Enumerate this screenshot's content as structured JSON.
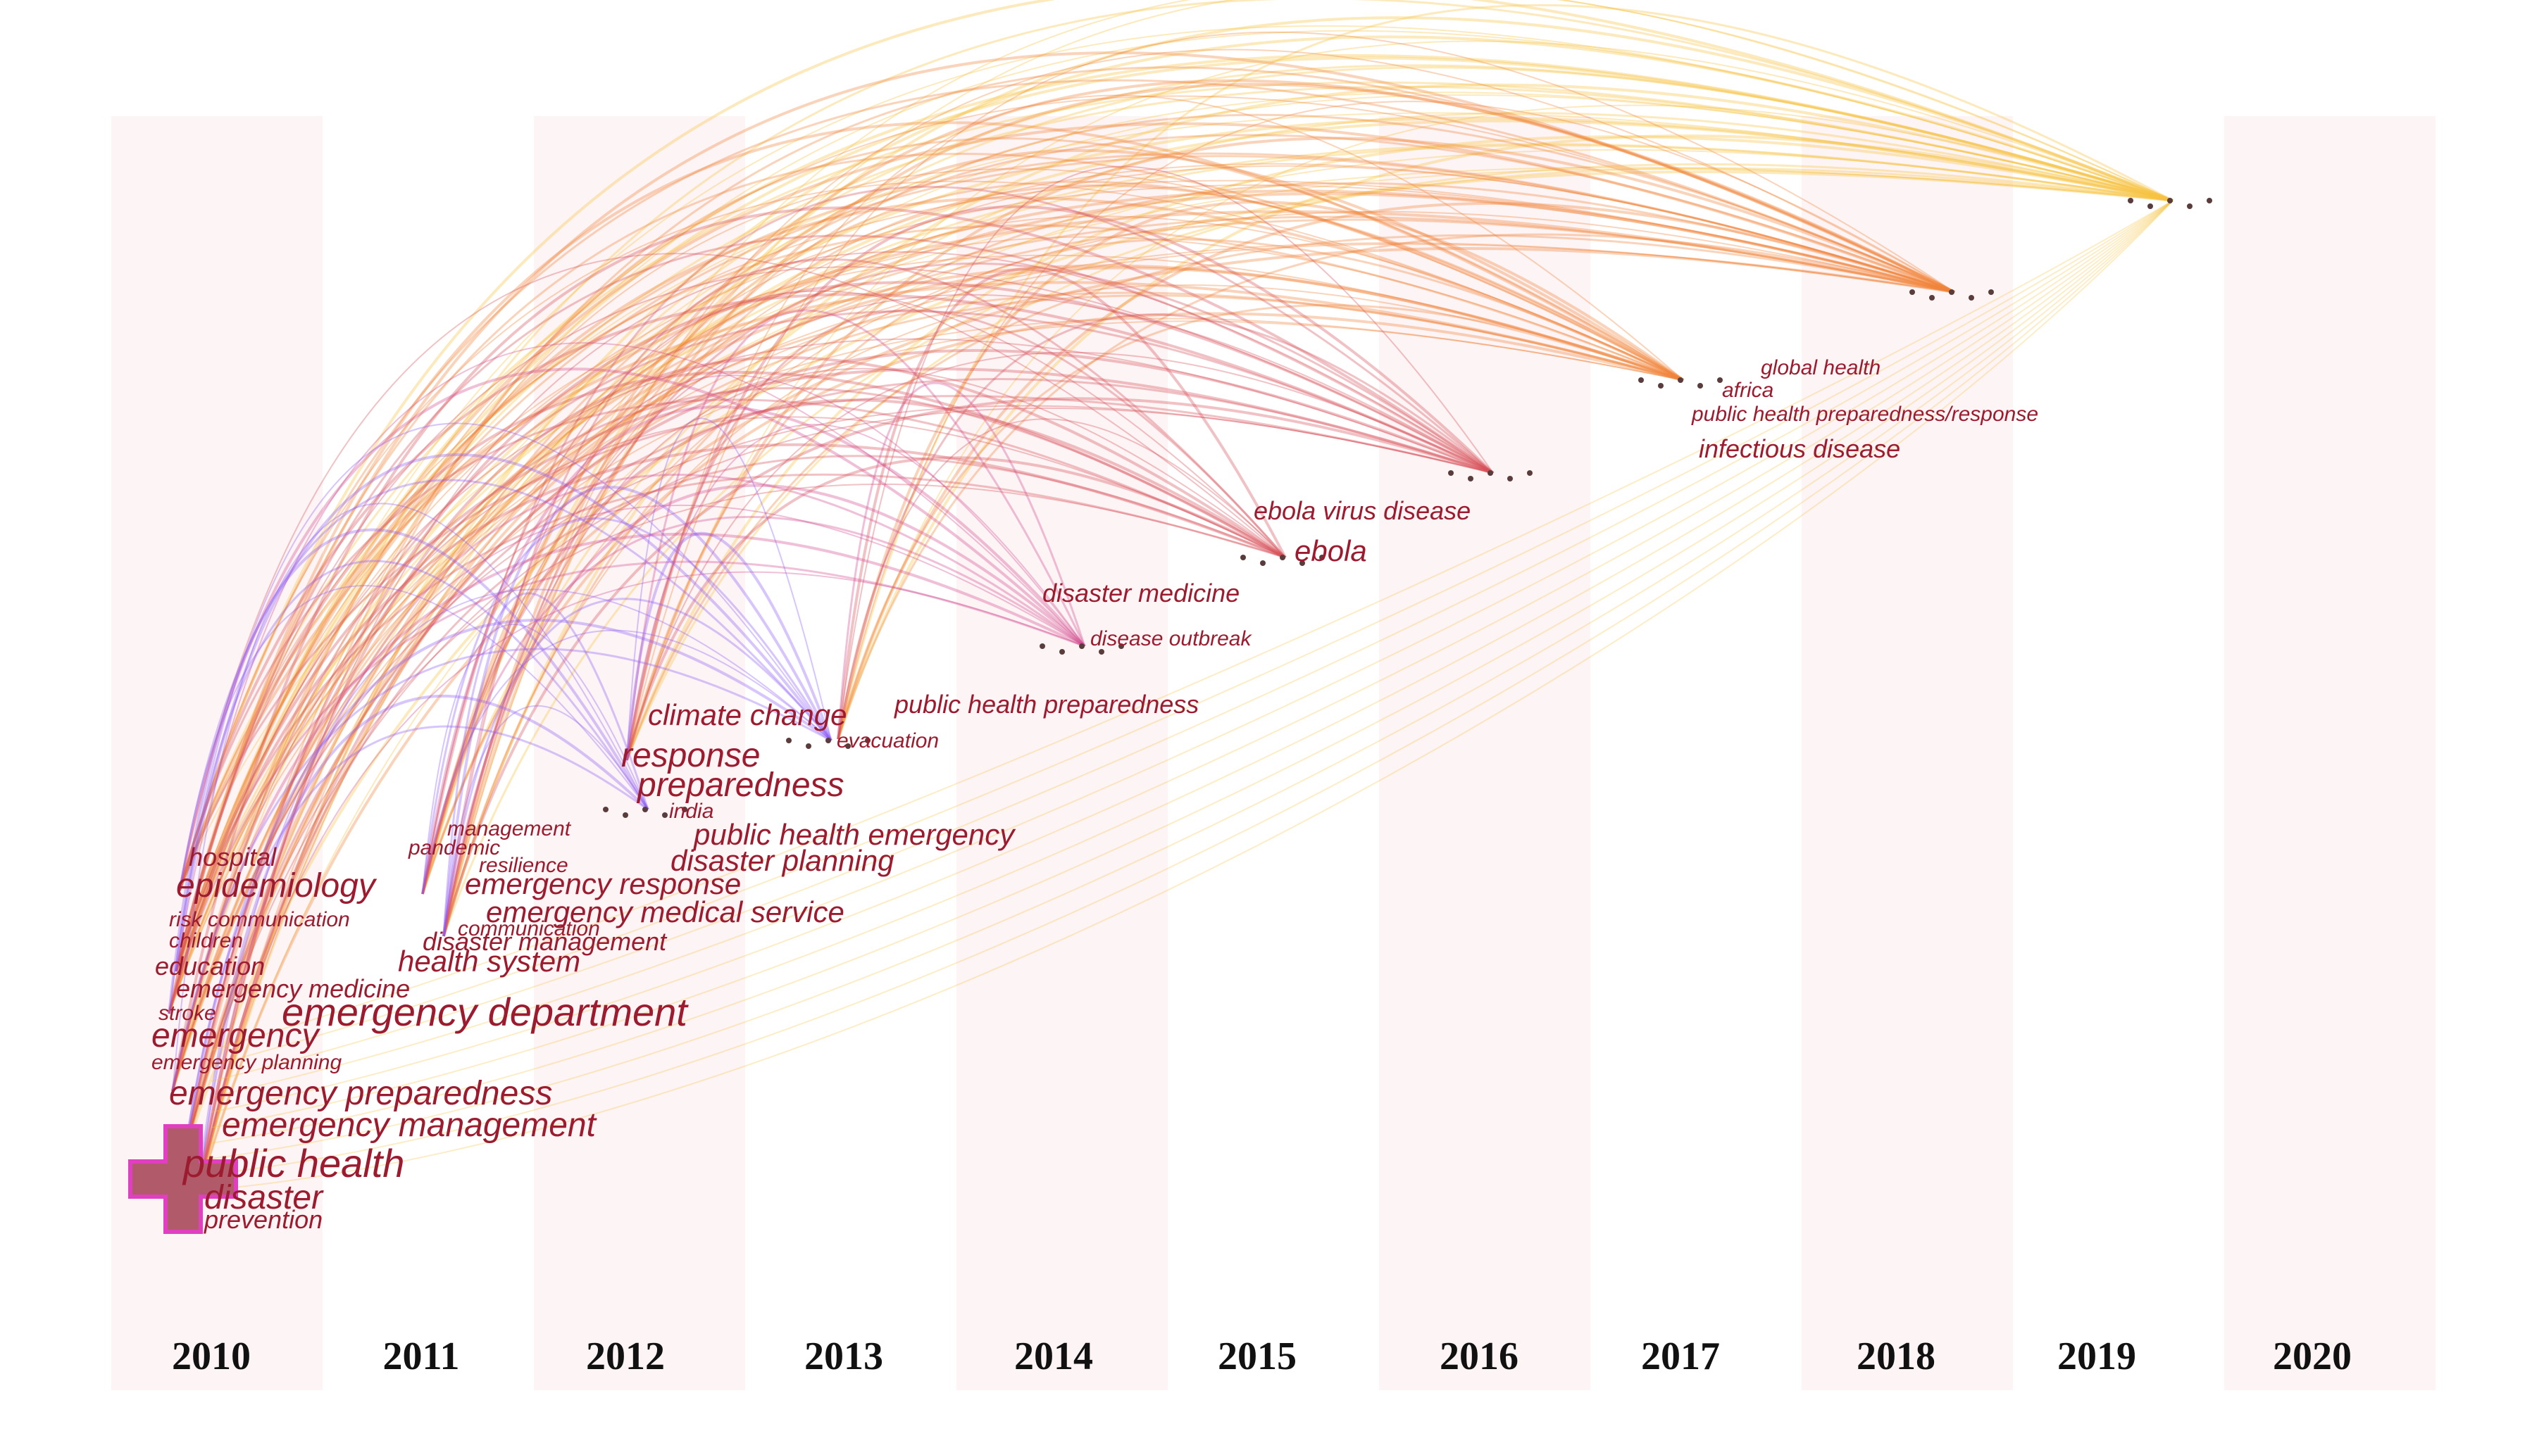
{
  "figure": {
    "type": "keyword co-occurrence timezone map",
    "years": [
      "2010",
      "2011",
      "2012",
      "2013",
      "2014",
      "2015",
      "2016",
      "2017",
      "2018",
      "2019",
      "2020"
    ],
    "colors": {
      "purple": "#8b5cf6",
      "magenta": "#d14a8e",
      "red": "#d8505a",
      "orange": "#f0843a",
      "yellow": "#f5c242",
      "label": "#9c1b2f",
      "band": "#fdf4f5"
    },
    "keywords_2010": {
      "hospital": "hospital",
      "epidemiology": "epidemiology",
      "risk_communication": "risk communication",
      "children": "children",
      "education": "education",
      "emergency_medicine": "emergency medicine",
      "stroke": "stroke",
      "emergency": "emergency",
      "emergency_planning": "emergency planning",
      "emergency_preparedness": "emergency preparedness",
      "emergency_management": "emergency management",
      "public_health": "public health",
      "disaster": "disaster",
      "prevention": "prevention"
    },
    "keywords_2011": {
      "management": "management",
      "pandemic": "pandemic",
      "resilience": "resilience",
      "emergency_response": "emergency response",
      "communication": "communication",
      "disaster_management": "disaster management",
      "emergency_medical_service": "emergency medical service",
      "health_system": "health system",
      "emergency_department": "emergency department"
    },
    "keywords_2012": {
      "climate_change": "climate change",
      "response": "response",
      "preparedness": "preparedness",
      "india": "india",
      "public_health_emergency": "public health emergency",
      "disaster_planning": "disaster planning"
    },
    "keywords_2013": {
      "public_health_preparedness": "public health preparedness",
      "evacuation": "evacuation"
    },
    "keywords_2014": {
      "disaster_medicine": "disaster medicine",
      "disease_outbreak": "disease outbreak"
    },
    "keywords_2015": {
      "ebola_virus_disease": "ebola virus disease",
      "ebola": "ebola"
    },
    "keywords_2017": {
      "global_health": "global health",
      "africa": "africa",
      "public_health_preparedness_response": "public health preparedness/response",
      "infectious_disease": "infectious disease"
    }
  }
}
